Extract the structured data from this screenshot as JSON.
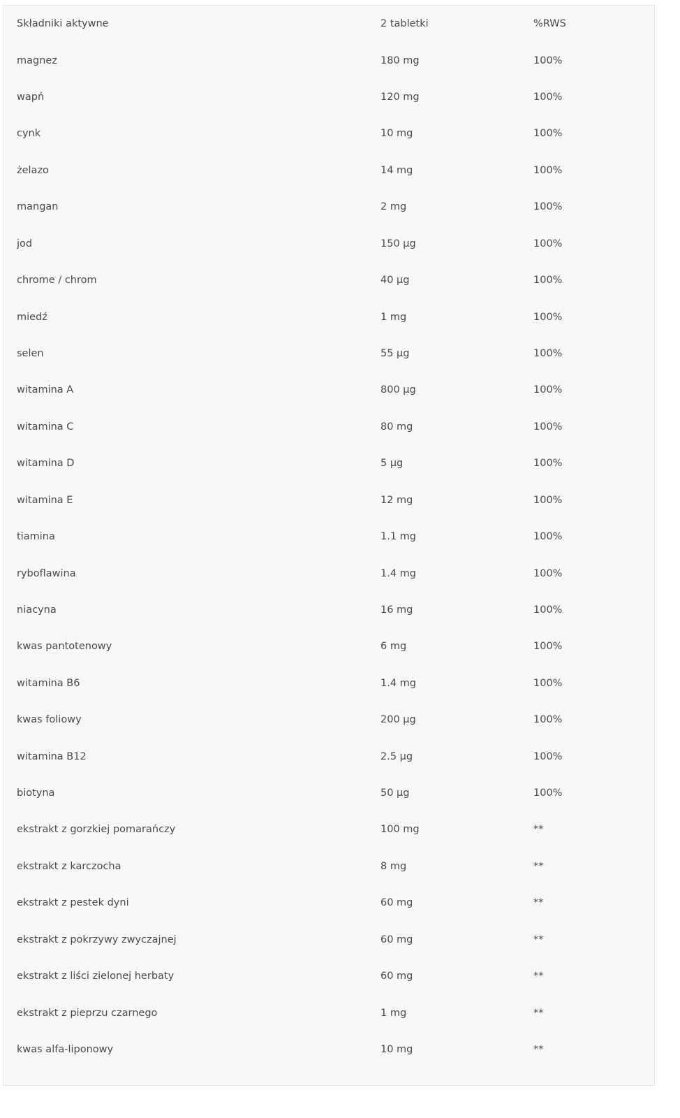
{
  "table": {
    "headers": [
      "Składniki aktywne",
      "2 tabletki",
      "%RWS"
    ],
    "rows": [
      [
        "magnez",
        "180 mg",
        "100%"
      ],
      [
        "wapń",
        "120 mg",
        "100%"
      ],
      [
        "cynk",
        "10 mg",
        "100%"
      ],
      [
        "żelazo",
        "14 mg",
        "100%"
      ],
      [
        "mangan",
        "2 mg",
        "100%"
      ],
      [
        "jod",
        "150 µg",
        "100%"
      ],
      [
        "chrome / chrom",
        "40 µg",
        "100%"
      ],
      [
        "miedź",
        "1 mg",
        "100%"
      ],
      [
        "selen",
        "55 µg",
        "100%"
      ],
      [
        "witamina A",
        "800 µg",
        "100%"
      ],
      [
        "witamina C",
        "80 mg",
        "100%"
      ],
      [
        "witamina D",
        "5 µg",
        "100%"
      ],
      [
        "witamina E",
        "12 mg",
        "100%"
      ],
      [
        "tiamina",
        "1.1 mg",
        "100%"
      ],
      [
        "ryboflawina",
        "1.4 mg",
        "100%"
      ],
      [
        "niacyna",
        "16 mg",
        "100%"
      ],
      [
        "kwas pantotenowy",
        "6 mg",
        "100%"
      ],
      [
        "witamina B6",
        "1.4 mg",
        "100%"
      ],
      [
        "kwas foliowy",
        "200 µg",
        "100%"
      ],
      [
        "witamina B12",
        "2.5 µg",
        "100%"
      ],
      [
        "biotyna",
        "50 µg",
        "100%"
      ],
      [
        "ekstrakt z gorzkiej pomarańczy",
        "100 mg",
        "**"
      ],
      [
        "ekstrakt z karczocha",
        "8 mg",
        "**"
      ],
      [
        "ekstrakt z pestek dyni",
        "60 mg",
        "**"
      ],
      [
        "ekstrakt z pokrzywy zwyczajnej",
        "60 mg",
        "**"
      ],
      [
        "ekstrakt z liści zielonej herbaty",
        "60 mg",
        "**"
      ],
      [
        "ekstrakt z pieprzu czarnego",
        "1 mg",
        "**"
      ],
      [
        "kwas alfa-liponowy",
        "10 mg",
        "**"
      ]
    ]
  }
}
